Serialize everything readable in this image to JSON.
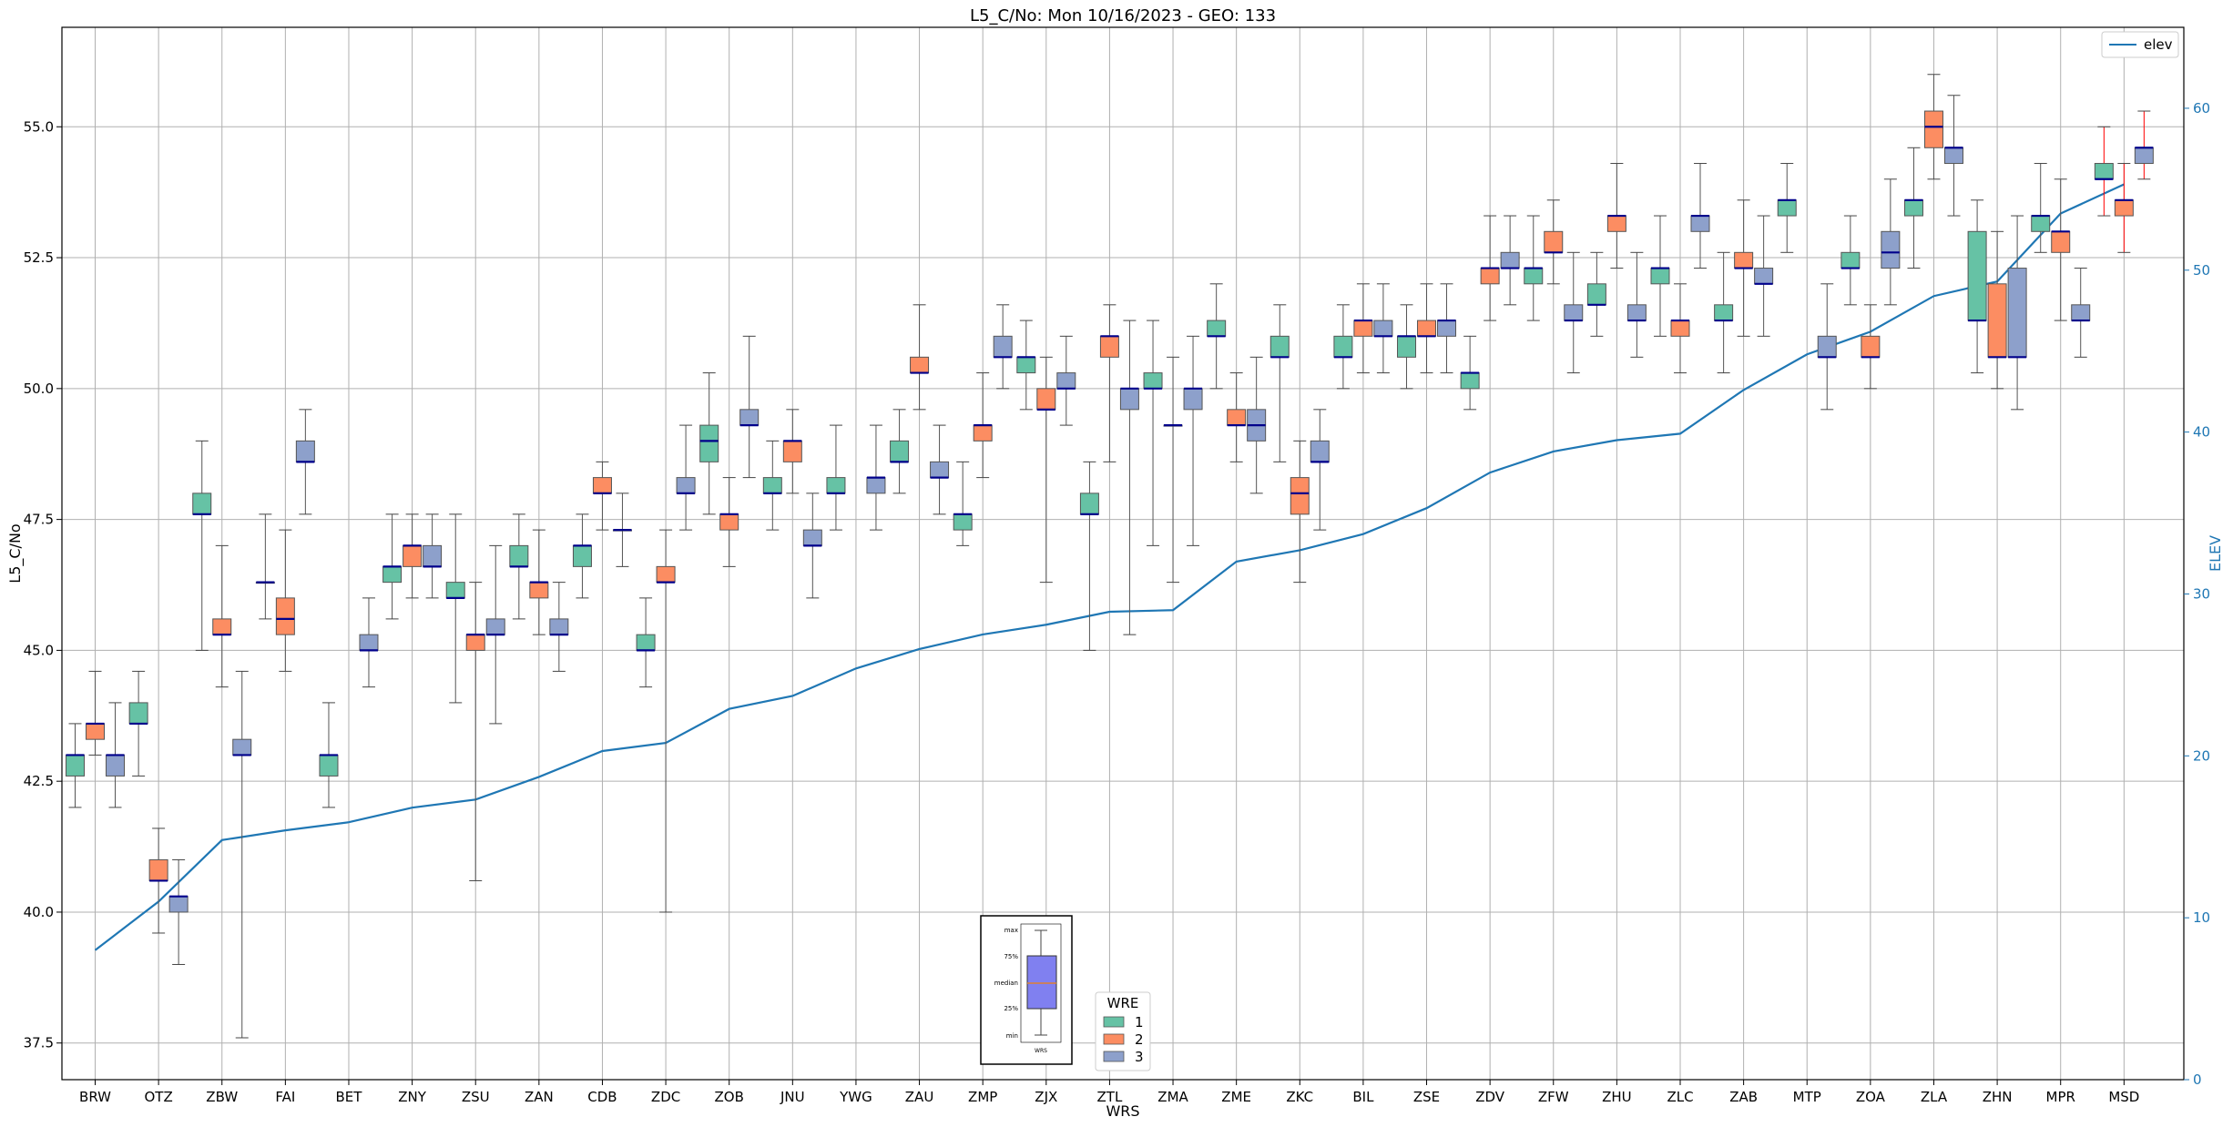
{
  "chart_data": {
    "type": "box",
    "title": "L5_C/No: Mon 10/16/2023 - GEO: 133",
    "xlabel": "WRS",
    "ylabel": "L5_C/No",
    "y2label": "ELEV",
    "ylim": [
      36.8,
      56.9
    ],
    "y2lim": [
      0,
      65
    ],
    "yticks": [
      37.5,
      40.0,
      42.5,
      45.0,
      47.5,
      50.0,
      52.5,
      55.0
    ],
    "yticks_labels": [
      "37.5",
      "40.0",
      "42.5",
      "45.0",
      "47.5",
      "50.0",
      "52.5",
      "55.0"
    ],
    "y2ticks": [
      0,
      10,
      20,
      30,
      40,
      50,
      60
    ],
    "y2ticks_labels": [
      "0",
      "10",
      "20",
      "30",
      "40",
      "50",
      "60"
    ],
    "grid": true,
    "categories": [
      "BRW",
      "OTZ",
      "ZBW",
      "FAI",
      "BET",
      "ZNY",
      "ZSU",
      "ZAN",
      "CDB",
      "ZDC",
      "ZOB",
      "JNU",
      "YWG",
      "ZAU",
      "ZMP",
      "ZJX",
      "ZTL",
      "ZMA",
      "ZME",
      "ZKC",
      "BIL",
      "ZSE",
      "ZDV",
      "ZFW",
      "ZHU",
      "ZLC",
      "ZAB",
      "MTP",
      "ZOA",
      "ZLA",
      "ZHN",
      "MPR",
      "MSD"
    ],
    "colors": {
      "1": "#66c2a5",
      "2": "#fc8d62",
      "3": "#8da0cb",
      "median": "#00008b",
      "whisker": "#555555",
      "elev": "#1f77b4",
      "outlier_whisker": "#ff0000"
    },
    "legend": {
      "title": "WRE",
      "entries": [
        "1",
        "2",
        "3"
      ],
      "placement": "bottom-center"
    },
    "elev_legend": {
      "label": "elev",
      "placement": "top-right"
    },
    "box_key": {
      "labels": [
        "max",
        "75%",
        "median",
        "25%",
        "min"
      ],
      "xlabel": "WRS"
    },
    "boxes": [
      {
        "station": "BRW",
        "wre": "1",
        "min": 42.0,
        "q1": 42.6,
        "med": 43.0,
        "q3": 43.0,
        "max": 43.6
      },
      {
        "station": "BRW",
        "wre": "2",
        "min": 43.0,
        "q1": 43.3,
        "med": 43.6,
        "q3": 43.6,
        "max": 44.6
      },
      {
        "station": "BRW",
        "wre": "3",
        "min": 42.0,
        "q1": 42.6,
        "med": 43.0,
        "q3": 43.0,
        "max": 44.0
      },
      {
        "station": "OTZ",
        "wre": "1",
        "min": 42.6,
        "q1": 43.6,
        "med": 43.6,
        "q3": 44.0,
        "max": 44.6
      },
      {
        "station": "OTZ",
        "wre": "2",
        "min": 39.6,
        "q1": 40.6,
        "med": 40.6,
        "q3": 41.0,
        "max": 41.6
      },
      {
        "station": "OTZ",
        "wre": "3",
        "min": 39.0,
        "q1": 40.0,
        "med": 40.3,
        "q3": 40.3,
        "max": 41.0
      },
      {
        "station": "ZBW",
        "wre": "1",
        "min": 45.0,
        "q1": 47.6,
        "med": 47.6,
        "q3": 48.0,
        "max": 49.0
      },
      {
        "station": "ZBW",
        "wre": "2",
        "min": 44.3,
        "q1": 45.3,
        "med": 45.3,
        "q3": 45.6,
        "max": 47.0
      },
      {
        "station": "ZBW",
        "wre": "3",
        "min": 37.6,
        "q1": 43.0,
        "med": 43.0,
        "q3": 43.3,
        "max": 44.6
      },
      {
        "station": "FAI",
        "wre": "1",
        "min": 45.6,
        "q1": 46.3,
        "med": 46.3,
        "q3": 46.3,
        "max": 47.6
      },
      {
        "station": "FAI",
        "wre": "2",
        "min": 44.6,
        "q1": 45.3,
        "med": 45.6,
        "q3": 46.0,
        "max": 47.3
      },
      {
        "station": "FAI",
        "wre": "3",
        "min": 47.6,
        "q1": 48.6,
        "med": 48.6,
        "q3": 49.0,
        "max": 49.6
      },
      {
        "station": "BET",
        "wre": "1",
        "min": 42.0,
        "q1": 42.6,
        "med": 43.0,
        "q3": 43.0,
        "max": 44.0
      },
      {
        "station": "BET",
        "wre": "3",
        "min": 44.3,
        "q1": 45.0,
        "med": 45.0,
        "q3": 45.3,
        "max": 46.0
      },
      {
        "station": "ZNY",
        "wre": "1",
        "min": 45.6,
        "q1": 46.3,
        "med": 46.6,
        "q3": 46.6,
        "max": 47.6
      },
      {
        "station": "ZNY",
        "wre": "2",
        "min": 46.0,
        "q1": 46.6,
        "med": 47.0,
        "q3": 47.0,
        "max": 47.6
      },
      {
        "station": "ZNY",
        "wre": "3",
        "min": 46.0,
        "q1": 46.6,
        "med": 46.6,
        "q3": 47.0,
        "max": 47.6
      },
      {
        "station": "ZSU",
        "wre": "1",
        "min": 44.0,
        "q1": 46.0,
        "med": 46.0,
        "q3": 46.3,
        "max": 47.6
      },
      {
        "station": "ZSU",
        "wre": "2",
        "min": 40.6,
        "q1": 45.0,
        "med": 45.3,
        "q3": 45.3,
        "max": 46.3
      },
      {
        "station": "ZSU",
        "wre": "3",
        "min": 43.6,
        "q1": 45.3,
        "med": 45.3,
        "q3": 45.6,
        "max": 47.0
      },
      {
        "station": "ZAN",
        "wre": "1",
        "min": 45.6,
        "q1": 46.6,
        "med": 46.6,
        "q3": 47.0,
        "max": 47.6
      },
      {
        "station": "ZAN",
        "wre": "2",
        "min": 45.3,
        "q1": 46.0,
        "med": 46.3,
        "q3": 46.3,
        "max": 47.3
      },
      {
        "station": "ZAN",
        "wre": "3",
        "min": 44.6,
        "q1": 45.3,
        "med": 45.3,
        "q3": 45.6,
        "max": 46.3
      },
      {
        "station": "CDB",
        "wre": "1",
        "min": 46.0,
        "q1": 46.6,
        "med": 47.0,
        "q3": 47.0,
        "max": 47.6
      },
      {
        "station": "CDB",
        "wre": "2",
        "min": 47.3,
        "q1": 48.0,
        "med": 48.0,
        "q3": 48.3,
        "max": 48.6
      },
      {
        "station": "CDB",
        "wre": "3",
        "min": 46.6,
        "q1": 47.3,
        "med": 47.3,
        "q3": 47.3,
        "max": 48.0
      },
      {
        "station": "ZDC",
        "wre": "1",
        "min": 44.3,
        "q1": 45.0,
        "med": 45.0,
        "q3": 45.3,
        "max": 46.0
      },
      {
        "station": "ZDC",
        "wre": "2",
        "min": 40.0,
        "q1": 46.3,
        "med": 46.3,
        "q3": 46.6,
        "max": 47.3
      },
      {
        "station": "ZDC",
        "wre": "3",
        "min": 47.3,
        "q1": 48.0,
        "med": 48.0,
        "q3": 48.3,
        "max": 49.3
      },
      {
        "station": "ZOB",
        "wre": "1",
        "min": 47.6,
        "q1": 48.6,
        "med": 49.0,
        "q3": 49.3,
        "max": 50.3
      },
      {
        "station": "ZOB",
        "wre": "2",
        "min": 46.6,
        "q1": 47.3,
        "med": 47.6,
        "q3": 47.6,
        "max": 48.3
      },
      {
        "station": "ZOB",
        "wre": "3",
        "min": 48.3,
        "q1": 49.3,
        "med": 49.3,
        "q3": 49.6,
        "max": 51.0
      },
      {
        "station": "JNU",
        "wre": "1",
        "min": 47.3,
        "q1": 48.0,
        "med": 48.0,
        "q3": 48.3,
        "max": 49.0
      },
      {
        "station": "JNU",
        "wre": "2",
        "min": 48.0,
        "q1": 48.6,
        "med": 49.0,
        "q3": 49.0,
        "max": 49.6
      },
      {
        "station": "JNU",
        "wre": "3",
        "min": 46.0,
        "q1": 47.0,
        "med": 47.0,
        "q3": 47.3,
        "max": 48.0
      },
      {
        "station": "YWG",
        "wre": "1",
        "min": 47.3,
        "q1": 48.0,
        "med": 48.0,
        "q3": 48.3,
        "max": 49.3
      },
      {
        "station": "YWG",
        "wre": "3",
        "min": 47.3,
        "q1": 48.0,
        "med": 48.3,
        "q3": 48.3,
        "max": 49.3
      },
      {
        "station": "ZAU",
        "wre": "1",
        "min": 48.0,
        "q1": 48.6,
        "med": 48.6,
        "q3": 49.0,
        "max": 49.6
      },
      {
        "station": "ZAU",
        "wre": "2",
        "min": 49.6,
        "q1": 50.3,
        "med": 50.3,
        "q3": 50.6,
        "max": 51.6
      },
      {
        "station": "ZAU",
        "wre": "3",
        "min": 47.6,
        "q1": 48.3,
        "med": 48.3,
        "q3": 48.6,
        "max": 49.3
      },
      {
        "station": "ZMP",
        "wre": "1",
        "min": 47.0,
        "q1": 47.3,
        "med": 47.6,
        "q3": 47.6,
        "max": 48.6
      },
      {
        "station": "ZMP",
        "wre": "2",
        "min": 48.3,
        "q1": 49.0,
        "med": 49.3,
        "q3": 49.3,
        "max": 50.3
      },
      {
        "station": "ZMP",
        "wre": "3",
        "min": 50.0,
        "q1": 50.6,
        "med": 50.6,
        "q3": 51.0,
        "max": 51.6
      },
      {
        "station": "ZJX",
        "wre": "1",
        "min": 49.6,
        "q1": 50.3,
        "med": 50.6,
        "q3": 50.6,
        "max": 51.3
      },
      {
        "station": "ZJX",
        "wre": "2",
        "min": 46.3,
        "q1": 49.6,
        "med": 49.6,
        "q3": 50.0,
        "max": 50.6
      },
      {
        "station": "ZJX",
        "wre": "3",
        "min": 49.3,
        "q1": 50.0,
        "med": 50.0,
        "q3": 50.3,
        "max": 51.0
      },
      {
        "station": "ZTL",
        "wre": "1",
        "min": 45.0,
        "q1": 47.6,
        "med": 47.6,
        "q3": 48.0,
        "max": 48.6
      },
      {
        "station": "ZTL",
        "wre": "2",
        "min": 48.6,
        "q1": 50.6,
        "med": 51.0,
        "q3": 51.0,
        "max": 51.6
      },
      {
        "station": "ZTL",
        "wre": "3",
        "min": 45.3,
        "q1": 49.6,
        "med": 50.0,
        "q3": 50.0,
        "max": 51.3
      },
      {
        "station": "ZMA",
        "wre": "1",
        "min": 47.0,
        "q1": 50.0,
        "med": 50.0,
        "q3": 50.3,
        "max": 51.3
      },
      {
        "station": "ZMA",
        "wre": "2",
        "min": 46.3,
        "q1": 49.3,
        "med": 49.3,
        "q3": 49.3,
        "max": 50.6
      },
      {
        "station": "ZMA",
        "wre": "3",
        "min": 47.0,
        "q1": 49.6,
        "med": 50.0,
        "q3": 50.0,
        "max": 51.0
      },
      {
        "station": "ZME",
        "wre": "1",
        "min": 50.0,
        "q1": 51.0,
        "med": 51.0,
        "q3": 51.3,
        "max": 52.0
      },
      {
        "station": "ZME",
        "wre": "2",
        "min": 48.6,
        "q1": 49.3,
        "med": 49.3,
        "q3": 49.6,
        "max": 50.3
      },
      {
        "station": "ZME",
        "wre": "3",
        "min": 48.0,
        "q1": 49.0,
        "med": 49.3,
        "q3": 49.6,
        "max": 50.6
      },
      {
        "station": "ZKC",
        "wre": "1",
        "min": 48.6,
        "q1": 50.6,
        "med": 50.6,
        "q3": 51.0,
        "max": 51.6
      },
      {
        "station": "ZKC",
        "wre": "2",
        "min": 46.3,
        "q1": 47.6,
        "med": 48.0,
        "q3": 48.3,
        "max": 49.0
      },
      {
        "station": "ZKC",
        "wre": "3",
        "min": 47.3,
        "q1": 48.6,
        "med": 48.6,
        "q3": 49.0,
        "max": 49.6
      },
      {
        "station": "BIL",
        "wre": "1",
        "min": 50.0,
        "q1": 50.6,
        "med": 50.6,
        "q3": 51.0,
        "max": 51.6
      },
      {
        "station": "BIL",
        "wre": "2",
        "min": 50.3,
        "q1": 51.0,
        "med": 51.3,
        "q3": 51.3,
        "max": 52.0
      },
      {
        "station": "BIL",
        "wre": "3",
        "min": 50.3,
        "q1": 51.0,
        "med": 51.0,
        "q3": 51.3,
        "max": 52.0
      },
      {
        "station": "ZSE",
        "wre": "1",
        "min": 50.0,
        "q1": 50.6,
        "med": 51.0,
        "q3": 51.0,
        "max": 51.6
      },
      {
        "station": "ZSE",
        "wre": "2",
        "min": 50.3,
        "q1": 51.0,
        "med": 51.0,
        "q3": 51.3,
        "max": 52.0
      },
      {
        "station": "ZSE",
        "wre": "3",
        "min": 50.3,
        "q1": 51.0,
        "med": 51.3,
        "q3": 51.3,
        "max": 52.0
      },
      {
        "station": "ZDV",
        "wre": "1",
        "min": 49.6,
        "q1": 50.0,
        "med": 50.3,
        "q3": 50.3,
        "max": 51.0
      },
      {
        "station": "ZDV",
        "wre": "2",
        "min": 51.3,
        "q1": 52.0,
        "med": 52.3,
        "q3": 52.3,
        "max": 53.3
      },
      {
        "station": "ZDV",
        "wre": "3",
        "min": 51.6,
        "q1": 52.3,
        "med": 52.3,
        "q3": 52.6,
        "max": 53.3
      },
      {
        "station": "ZFW",
        "wre": "1",
        "min": 51.3,
        "q1": 52.0,
        "med": 52.3,
        "q3": 52.3,
        "max": 53.3
      },
      {
        "station": "ZFW",
        "wre": "2",
        "min": 52.0,
        "q1": 52.6,
        "med": 52.6,
        "q3": 53.0,
        "max": 53.6
      },
      {
        "station": "ZFW",
        "wre": "3",
        "min": 50.3,
        "q1": 51.3,
        "med": 51.3,
        "q3": 51.6,
        "max": 52.6
      },
      {
        "station": "ZHU",
        "wre": "1",
        "min": 51.0,
        "q1": 51.6,
        "med": 51.6,
        "q3": 52.0,
        "max": 52.6
      },
      {
        "station": "ZHU",
        "wre": "2",
        "min": 52.3,
        "q1": 53.0,
        "med": 53.3,
        "q3": 53.3,
        "max": 54.3
      },
      {
        "station": "ZHU",
        "wre": "3",
        "min": 50.6,
        "q1": 51.3,
        "med": 51.3,
        "q3": 51.6,
        "max": 52.6
      },
      {
        "station": "ZLC",
        "wre": "1",
        "min": 51.0,
        "q1": 52.0,
        "med": 52.3,
        "q3": 52.3,
        "max": 53.3
      },
      {
        "station": "ZLC",
        "wre": "2",
        "min": 50.3,
        "q1": 51.0,
        "med": 51.3,
        "q3": 51.3,
        "max": 52.0
      },
      {
        "station": "ZLC",
        "wre": "3",
        "min": 52.3,
        "q1": 53.0,
        "med": 53.3,
        "q3": 53.3,
        "max": 54.3
      },
      {
        "station": "ZAB",
        "wre": "1",
        "min": 50.3,
        "q1": 51.3,
        "med": 51.3,
        "q3": 51.6,
        "max": 52.6
      },
      {
        "station": "ZAB",
        "wre": "2",
        "min": 51.0,
        "q1": 52.3,
        "med": 52.3,
        "q3": 52.6,
        "max": 53.6
      },
      {
        "station": "ZAB",
        "wre": "3",
        "min": 51.0,
        "q1": 52.0,
        "med": 52.0,
        "q3": 52.3,
        "max": 53.3
      },
      {
        "station": "MTP",
        "wre": "1",
        "min": 52.6,
        "q1": 53.3,
        "med": 53.6,
        "q3": 53.6,
        "max": 54.3
      },
      {
        "station": "MTP",
        "wre": "3",
        "min": 49.6,
        "q1": 50.6,
        "med": 50.6,
        "q3": 51.0,
        "max": 52.0
      },
      {
        "station": "ZOA",
        "wre": "1",
        "min": 51.6,
        "q1": 52.3,
        "med": 52.3,
        "q3": 52.6,
        "max": 53.3
      },
      {
        "station": "ZOA",
        "wre": "2",
        "min": 50.0,
        "q1": 50.6,
        "med": 50.6,
        "q3": 51.0,
        "max": 51.6
      },
      {
        "station": "ZOA",
        "wre": "3",
        "min": 51.6,
        "q1": 52.3,
        "med": 52.6,
        "q3": 53.0,
        "max": 54.0
      },
      {
        "station": "ZLA",
        "wre": "1",
        "min": 52.3,
        "q1": 53.3,
        "med": 53.6,
        "q3": 53.6,
        "max": 54.6
      },
      {
        "station": "ZLA",
        "wre": "2",
        "min": 54.0,
        "q1": 54.6,
        "med": 55.0,
        "q3": 55.3,
        "max": 56.0
      },
      {
        "station": "ZLA",
        "wre": "3",
        "min": 53.3,
        "q1": 54.3,
        "med": 54.6,
        "q3": 54.6,
        "max": 55.6
      },
      {
        "station": "ZHN",
        "wre": "1",
        "min": 50.3,
        "q1": 51.3,
        "med": 51.3,
        "q3": 53.0,
        "max": 53.6
      },
      {
        "station": "ZHN",
        "wre": "2",
        "min": 50.0,
        "q1": 50.6,
        "med": 50.6,
        "q3": 52.0,
        "max": 53.0
      },
      {
        "station": "ZHN",
        "wre": "3",
        "min": 49.6,
        "q1": 50.6,
        "med": 50.6,
        "q3": 52.3,
        "max": 53.3
      },
      {
        "station": "MPR",
        "wre": "1",
        "min": 52.6,
        "q1": 53.0,
        "med": 53.3,
        "q3": 53.3,
        "max": 54.3
      },
      {
        "station": "MPR",
        "wre": "2",
        "min": 51.3,
        "q1": 52.6,
        "med": 53.0,
        "q3": 53.0,
        "max": 54.0
      },
      {
        "station": "MPR",
        "wre": "3",
        "min": 50.6,
        "q1": 51.3,
        "med": 51.3,
        "q3": 51.6,
        "max": 52.3
      },
      {
        "station": "MSD",
        "wre": "1",
        "min": 53.3,
        "q1": 54.0,
        "med": 54.0,
        "q3": 54.3,
        "max": 55.0,
        "red": true
      },
      {
        "station": "MSD",
        "wre": "2",
        "min": 52.6,
        "q1": 53.3,
        "med": 53.6,
        "q3": 53.6,
        "max": 54.3,
        "red": true
      },
      {
        "station": "MSD",
        "wre": "3",
        "min": 54.0,
        "q1": 54.3,
        "med": 54.6,
        "q3": 54.6,
        "max": 55.3,
        "red": true
      }
    ],
    "elev": [
      8,
      11,
      14.8,
      15.4,
      15.9,
      16.8,
      17.3,
      18.7,
      20.3,
      20.8,
      22.9,
      23.7,
      25.4,
      26.6,
      27.5,
      28.1,
      28.9,
      29.0,
      32.0,
      32.7,
      33.7,
      35.3,
      37.5,
      38.8,
      39.5,
      39.9,
      42.6,
      44.8,
      46.2,
      48.4,
      49.3,
      53.5,
      55.3
    ]
  }
}
